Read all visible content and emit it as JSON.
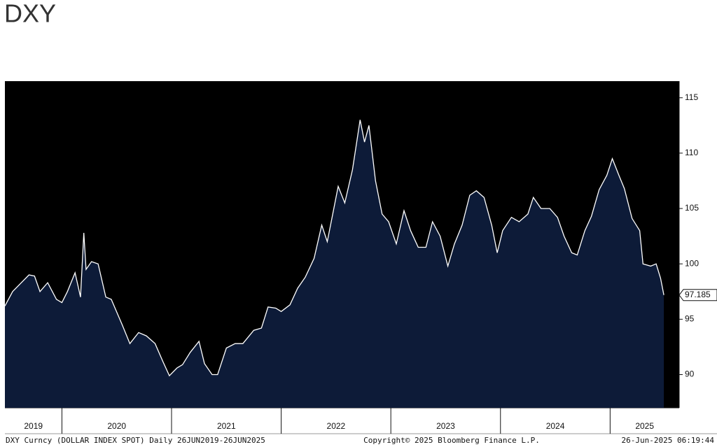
{
  "chart_data": {
    "type": "area",
    "title": "DXY",
    "footer": {
      "left": "DXY Curncy (DOLLAR INDEX SPOT)  Daily 26JUN2019-26JUN2025",
      "center": "Copyright© 2025 Bloomberg Finance L.P.",
      "right": "26-Jun-2025 06:19:44"
    },
    "color": "#ffffff",
    "fill": "#0d1b38",
    "background": "#000000",
    "grid": false,
    "x": [
      2019.48,
      2019.55,
      2019.62,
      2019.7,
      2019.75,
      2019.8,
      2019.87,
      2019.95,
      2020.0,
      2020.05,
      2020.12,
      2020.17,
      2020.2,
      2020.22,
      2020.27,
      2020.33,
      2020.4,
      2020.45,
      2020.55,
      2020.62,
      2020.7,
      2020.77,
      2020.85,
      2020.92,
      2020.98,
      2021.05,
      2021.1,
      2021.17,
      2021.25,
      2021.3,
      2021.37,
      2021.42,
      2021.5,
      2021.58,
      2021.65,
      2021.75,
      2021.82,
      2021.88,
      2021.95,
      2022.0,
      2022.08,
      2022.15,
      2022.22,
      2022.3,
      2022.37,
      2022.42,
      2022.47,
      2022.52,
      2022.58,
      2022.65,
      2022.72,
      2022.76,
      2022.8,
      2022.86,
      2022.92,
      2022.98,
      2023.05,
      2023.12,
      2023.18,
      2023.25,
      2023.32,
      2023.38,
      2023.45,
      2023.52,
      2023.58,
      2023.65,
      2023.72,
      2023.78,
      2023.85,
      2023.92,
      2023.97,
      2024.02,
      2024.1,
      2024.17,
      2024.25,
      2024.3,
      2024.37,
      2024.45,
      2024.52,
      2024.58,
      2024.65,
      2024.7,
      2024.77,
      2024.83,
      2024.9,
      2024.97,
      2025.02,
      2025.08,
      2025.13,
      2025.2,
      2025.27,
      2025.3,
      2025.37,
      2025.42,
      2025.46,
      2025.49
    ],
    "values": [
      96.2,
      97.5,
      98.2,
      99.0,
      98.9,
      97.5,
      98.3,
      96.8,
      96.5,
      97.5,
      99.2,
      97.0,
      102.8,
      99.5,
      100.2,
      100.0,
      97.0,
      96.8,
      94.5,
      92.8,
      93.8,
      93.5,
      92.8,
      91.2,
      89.9,
      90.6,
      90.9,
      92.0,
      93.0,
      91.0,
      90.0,
      90.0,
      92.4,
      92.8,
      92.8,
      94.0,
      94.2,
      96.1,
      96.0,
      95.7,
      96.3,
      97.8,
      98.8,
      100.5,
      103.5,
      102.0,
      104.5,
      107.0,
      105.5,
      108.5,
      113.0,
      111.0,
      112.5,
      107.5,
      104.5,
      103.8,
      101.8,
      104.8,
      103.0,
      101.5,
      101.5,
      103.8,
      102.5,
      99.8,
      101.8,
      103.5,
      106.2,
      106.6,
      106.0,
      103.5,
      101.0,
      103.0,
      104.2,
      103.8,
      104.5,
      106.0,
      105.0,
      105.0,
      104.2,
      102.5,
      101.0,
      100.8,
      103.0,
      104.3,
      106.7,
      108.0,
      109.5,
      108.0,
      106.8,
      104.1,
      103.0,
      100.0,
      99.8,
      100.0,
      98.7,
      97.185
    ],
    "xlim": [
      2019.48,
      2025.63
    ],
    "xticks": [
      2019,
      2020,
      2021,
      2022,
      2023,
      2024,
      2025
    ],
    "ylim": [
      87,
      116.5
    ],
    "yticks": [
      90,
      95,
      100,
      105,
      110,
      115
    ]
  }
}
